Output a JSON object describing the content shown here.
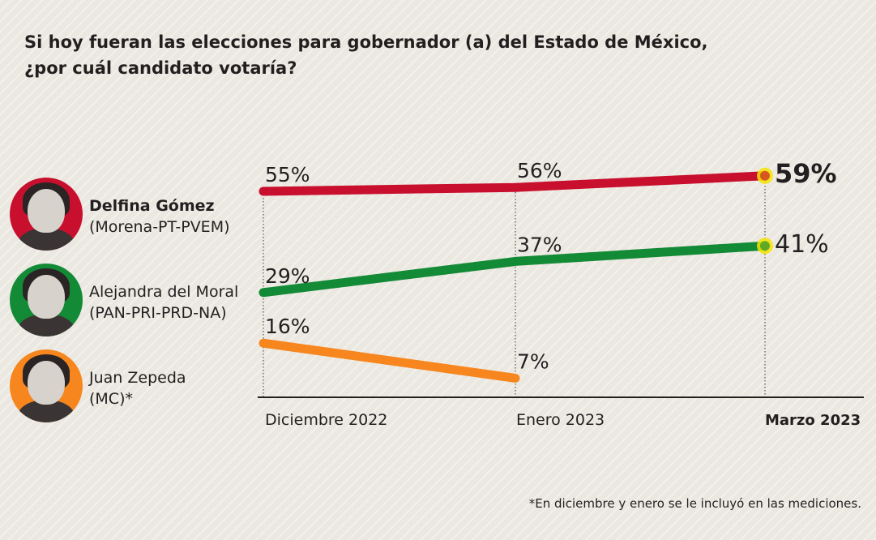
{
  "title_line1": "Si hoy fueran las elecciones para gobernador (a) del Estado de México,",
  "title_line2": "¿por cuál candidato votaría?",
  "footnote": "*En diciembre y enero se le incluyó en las mediciones.",
  "candidates": [
    {
      "name": "Delfina Gómez",
      "party": "(Morena-PT-PVEM)",
      "color": "#c8102e",
      "icon": "candidate-photo"
    },
    {
      "name": "Alejandra del Moral",
      "party": "(PAN-PRI-PRD-NA)",
      "color": "#138a36",
      "icon": "candidate-photo"
    },
    {
      "name": "Juan Zepeda",
      "party": "(MC)*",
      "color": "#f7861e",
      "icon": "candidate-photo"
    }
  ],
  "chart_data": {
    "type": "line",
    "categories": [
      "Diciembre 2022",
      "Enero 2023",
      "Marzo 2023"
    ],
    "highlight_category": "Marzo 2023",
    "ylim": [
      0,
      60
    ],
    "grid": "vertical dotted at each category",
    "highlight_color": "#f5e400",
    "series": [
      {
        "name": "Delfina Gómez",
        "color": "#c8102e",
        "values": [
          55,
          56,
          59
        ],
        "labels": [
          "55%",
          "56%",
          "59%"
        ]
      },
      {
        "name": "Alejandra del Moral",
        "color": "#138a36",
        "values": [
          29,
          37,
          41
        ],
        "labels": [
          "29%",
          "37%",
          "41%"
        ]
      },
      {
        "name": "Juan Zepeda",
        "color": "#f7861e",
        "values": [
          16,
          7,
          null
        ],
        "labels": [
          "16%",
          "7%",
          ""
        ]
      }
    ]
  }
}
